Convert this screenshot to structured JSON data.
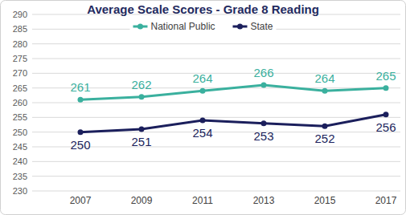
{
  "chart_data": {
    "type": "line",
    "title": "Average Scale Scores - Grade 8 Reading",
    "categories": [
      "2007",
      "2009",
      "2011",
      "2013",
      "2015",
      "2017"
    ],
    "series": [
      {
        "name": "National Public",
        "color": "#3AB09E",
        "marker": "circle",
        "values": [
          261,
          262,
          264,
          266,
          264,
          265
        ]
      },
      {
        "name": "State",
        "color": "#1B1F5C",
        "marker": "circle",
        "values": [
          250,
          251,
          254,
          253,
          252,
          256
        ]
      }
    ],
    "ylim": [
      230,
      290
    ],
    "yticks": [
      230,
      235,
      240,
      245,
      250,
      255,
      260,
      265,
      270,
      275,
      280,
      285,
      290
    ],
    "grid": true,
    "legend": "top",
    "data_labels": true
  }
}
